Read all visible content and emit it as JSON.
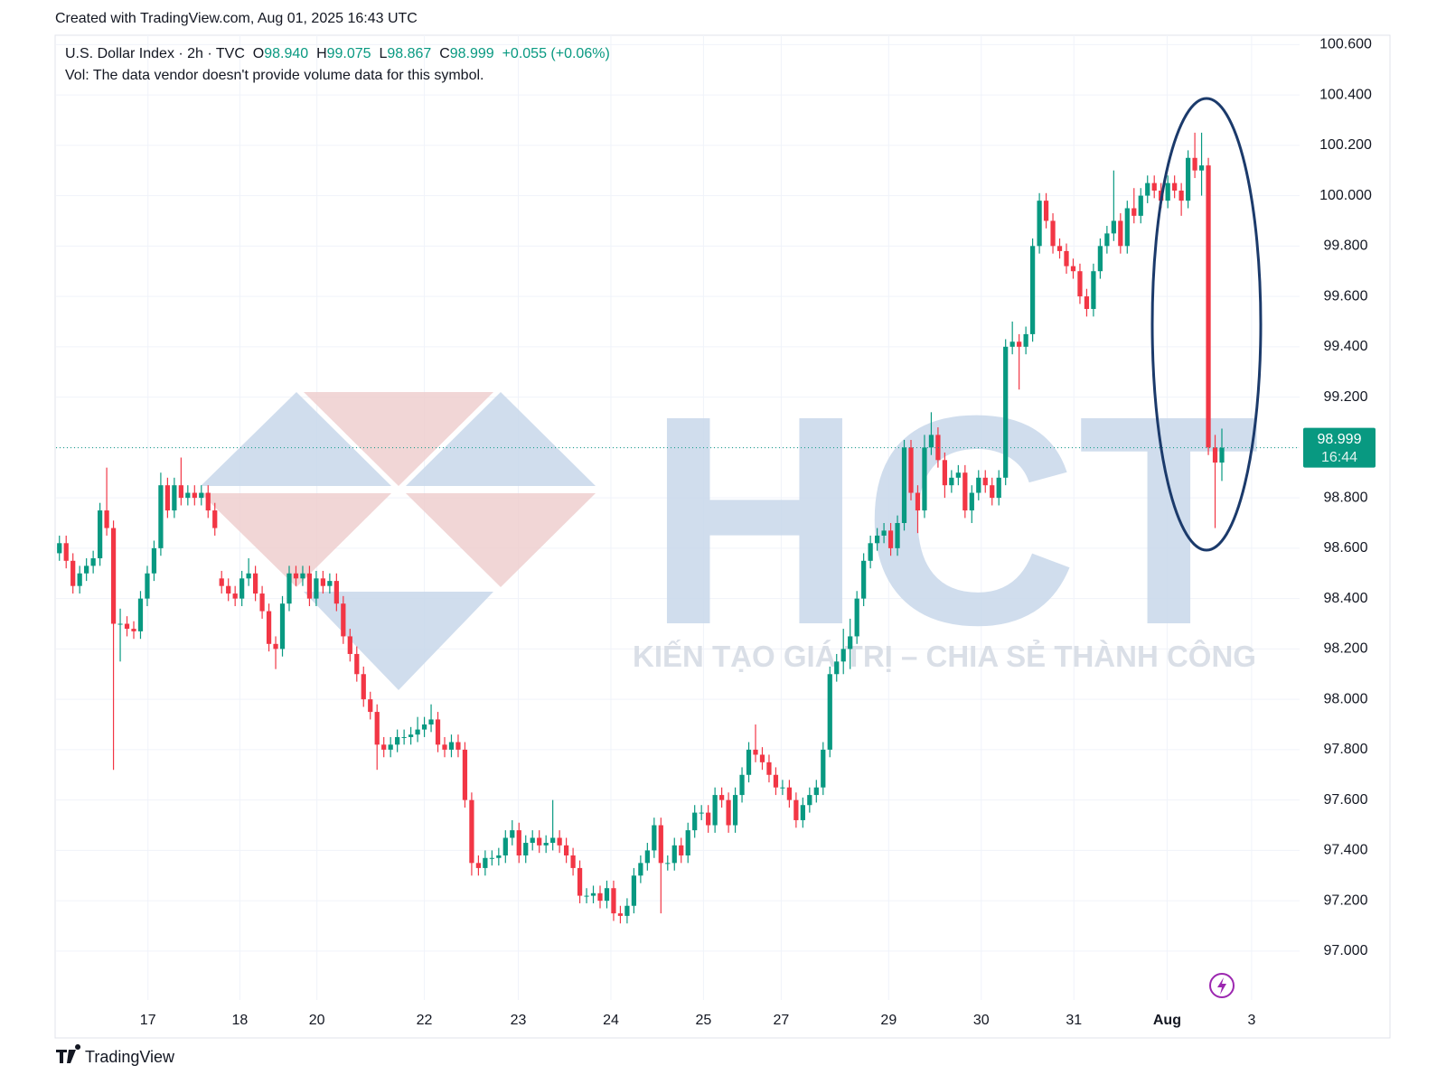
{
  "header": {
    "created": "Created with TradingView.com, Aug 01, 2025 16:43 UTC"
  },
  "footer": {
    "brand": "TradingView"
  },
  "watermark": {
    "logo": "HCT",
    "slogan": "KIẾN TẠO GIÁ TRỊ – CHIA SẺ THÀNH CÔNG"
  },
  "chart_data": {
    "type": "candlestick",
    "legend": {
      "symbol": "U.S. Dollar Index · 2h · TVC",
      "o_label": "O",
      "o": "98.940",
      "h_label": "H",
      "h": "99.075",
      "l_label": "L",
      "l": "98.867",
      "c_label": "C",
      "c": "98.999",
      "change": "+0.055 (+0.06%)",
      "volume_note": "Vol: The data vendor doesn't provide volume data for this symbol."
    },
    "up_color": "#089981",
    "down_color": "#f23645",
    "grid": true,
    "ylim": [
      96.806,
      100.637
    ],
    "yticks": [
      {
        "value": 97.0,
        "label": "97.000"
      },
      {
        "value": 97.2,
        "label": "97.200"
      },
      {
        "value": 97.4,
        "label": "97.400"
      },
      {
        "value": 97.6,
        "label": "97.600"
      },
      {
        "value": 97.8,
        "label": "97.800"
      },
      {
        "value": 98.0,
        "label": "98.000"
      },
      {
        "value": 98.2,
        "label": "98.200"
      },
      {
        "value": 98.4,
        "label": "98.400"
      },
      {
        "value": 98.6,
        "label": "98.600"
      },
      {
        "value": 98.8,
        "label": "98.800"
      },
      {
        "value": 99.0,
        "label": "99.000"
      },
      {
        "value": 99.2,
        "label": "99.200"
      },
      {
        "value": 99.4,
        "label": "99.400"
      },
      {
        "value": 99.6,
        "label": "99.600"
      },
      {
        "value": 99.8,
        "label": "99.800"
      },
      {
        "value": 100.0,
        "label": "100.000"
      },
      {
        "value": 100.2,
        "label": "100.200"
      },
      {
        "value": 100.4,
        "label": "100.400"
      },
      {
        "value": 100.6,
        "label": "100.600"
      }
    ],
    "xlim": [
      -0.5,
      183.5
    ],
    "xticks": [
      {
        "value": 13.1,
        "label": "17"
      },
      {
        "value": 26.7,
        "label": "18"
      },
      {
        "value": 38.1,
        "label": "20"
      },
      {
        "value": 54.0,
        "label": "22"
      },
      {
        "value": 67.9,
        "label": "23"
      },
      {
        "value": 81.6,
        "label": "24"
      },
      {
        "value": 95.3,
        "label": "25"
      },
      {
        "value": 106.8,
        "label": "27"
      },
      {
        "value": 122.7,
        "label": "29"
      },
      {
        "value": 136.4,
        "label": "30"
      },
      {
        "value": 150.1,
        "label": "31"
      },
      {
        "value": 163.9,
        "label": "Aug"
      },
      {
        "value": 176.4,
        "label": "3"
      }
    ],
    "last_price": {
      "value": 98.999,
      "label": "98.999",
      "time": "16:44"
    },
    "candles": [
      [
        98.58,
        98.65,
        98.55,
        98.62
      ],
      [
        98.62,
        98.65,
        98.52,
        98.55
      ],
      [
        98.55,
        98.58,
        98.42,
        98.45
      ],
      [
        98.45,
        98.53,
        98.42,
        98.5
      ],
      [
        98.5,
        98.56,
        98.47,
        98.53
      ],
      [
        98.53,
        98.59,
        98.5,
        98.56
      ],
      [
        98.56,
        98.78,
        98.53,
        98.75
      ],
      [
        98.75,
        98.92,
        98.65,
        98.68
      ],
      [
        98.68,
        98.71,
        97.72,
        98.3
      ],
      [
        98.3,
        98.36,
        98.15,
        98.3
      ],
      [
        98.3,
        98.33,
        98.25,
        98.28
      ],
      [
        98.28,
        98.31,
        98.24,
        98.27
      ],
      [
        98.27,
        98.43,
        98.24,
        98.4
      ],
      [
        98.4,
        98.53,
        98.37,
        98.5
      ],
      [
        98.5,
        98.63,
        98.47,
        98.6
      ],
      [
        98.6,
        98.9,
        98.57,
        98.85
      ],
      [
        98.85,
        98.88,
        98.72,
        98.75
      ],
      [
        98.75,
        98.88,
        98.72,
        98.85
      ],
      [
        98.85,
        98.96,
        98.77,
        98.8
      ],
      [
        98.8,
        98.85,
        98.77,
        98.82
      ],
      [
        98.82,
        98.85,
        98.77,
        98.8
      ],
      [
        98.8,
        98.85,
        98.77,
        98.82
      ],
      [
        98.82,
        98.85,
        98.72,
        98.75
      ],
      [
        98.75,
        98.78,
        98.65,
        98.68
      ],
      [
        98.48,
        98.51,
        98.42,
        98.45
      ],
      [
        98.45,
        98.48,
        98.39,
        98.42
      ],
      [
        98.42,
        98.45,
        98.37,
        98.4
      ],
      [
        98.4,
        98.51,
        98.37,
        98.48
      ],
      [
        98.48,
        98.56,
        98.45,
        98.5
      ],
      [
        98.5,
        98.53,
        98.39,
        98.42
      ],
      [
        98.42,
        98.45,
        98.32,
        98.35
      ],
      [
        98.35,
        98.38,
        98.19,
        98.22
      ],
      [
        98.22,
        98.25,
        98.12,
        98.2
      ],
      [
        98.2,
        98.41,
        98.17,
        98.38
      ],
      [
        98.38,
        98.53,
        98.35,
        98.5
      ],
      [
        98.5,
        98.53,
        98.45,
        98.48
      ],
      [
        98.48,
        98.53,
        98.45,
        98.5
      ],
      [
        98.5,
        98.53,
        98.37,
        98.4
      ],
      [
        98.4,
        98.51,
        98.37,
        98.48
      ],
      [
        98.48,
        98.51,
        98.42,
        98.45
      ],
      [
        98.45,
        98.5,
        98.42,
        98.47
      ],
      [
        98.47,
        98.5,
        98.35,
        98.38
      ],
      [
        98.38,
        98.41,
        98.22,
        98.25
      ],
      [
        98.25,
        98.28,
        98.15,
        98.18
      ],
      [
        98.18,
        98.21,
        98.07,
        98.1
      ],
      [
        98.1,
        98.13,
        97.97,
        98.0
      ],
      [
        98.0,
        98.03,
        97.92,
        97.95
      ],
      [
        97.95,
        97.98,
        97.72,
        97.82
      ],
      [
        97.82,
        97.85,
        97.77,
        97.8
      ],
      [
        97.8,
        97.85,
        97.77,
        97.82
      ],
      [
        97.82,
        97.88,
        97.79,
        97.85
      ],
      [
        97.85,
        97.88,
        97.82,
        97.85
      ],
      [
        97.85,
        97.89,
        97.82,
        97.86
      ],
      [
        97.86,
        97.93,
        97.83,
        97.88
      ],
      [
        97.88,
        97.93,
        97.85,
        97.9
      ],
      [
        97.9,
        97.98,
        97.87,
        97.92
      ],
      [
        97.92,
        97.95,
        97.79,
        97.82
      ],
      [
        97.82,
        97.85,
        97.77,
        97.8
      ],
      [
        97.8,
        97.86,
        97.77,
        97.83
      ],
      [
        97.83,
        97.86,
        97.77,
        97.8
      ],
      [
        97.8,
        97.83,
        97.57,
        97.6
      ],
      [
        97.6,
        97.63,
        97.3,
        97.35
      ],
      [
        97.35,
        97.38,
        97.3,
        97.33
      ],
      [
        97.33,
        97.4,
        97.3,
        97.37
      ],
      [
        97.37,
        97.4,
        97.34,
        97.37
      ],
      [
        97.37,
        97.41,
        97.34,
        97.38
      ],
      [
        97.38,
        97.48,
        97.35,
        97.45
      ],
      [
        97.45,
        97.52,
        97.42,
        97.48
      ],
      [
        97.48,
        97.51,
        97.35,
        97.38
      ],
      [
        97.38,
        97.46,
        97.35,
        97.43
      ],
      [
        97.43,
        97.48,
        97.4,
        97.45
      ],
      [
        97.45,
        97.48,
        97.39,
        97.42
      ],
      [
        97.42,
        97.46,
        97.39,
        97.43
      ],
      [
        97.43,
        97.6,
        97.4,
        97.45
      ],
      [
        97.45,
        97.48,
        97.39,
        97.42
      ],
      [
        97.42,
        97.45,
        97.35,
        97.38
      ],
      [
        97.38,
        97.41,
        97.3,
        97.33
      ],
      [
        97.33,
        97.36,
        97.19,
        97.22
      ],
      [
        97.22,
        97.25,
        97.19,
        97.22
      ],
      [
        97.22,
        97.26,
        97.19,
        97.23
      ],
      [
        97.23,
        97.26,
        97.17,
        97.2
      ],
      [
        97.2,
        97.28,
        97.17,
        97.25
      ],
      [
        97.25,
        97.28,
        97.12,
        97.15
      ],
      [
        97.15,
        97.18,
        97.11,
        97.14
      ],
      [
        97.14,
        97.21,
        97.11,
        97.18
      ],
      [
        97.18,
        97.33,
        97.15,
        97.3
      ],
      [
        97.3,
        97.38,
        97.27,
        97.35
      ],
      [
        97.35,
        97.43,
        97.32,
        97.4
      ],
      [
        97.4,
        97.53,
        97.37,
        97.5
      ],
      [
        97.5,
        97.53,
        97.15,
        97.35
      ],
      [
        97.35,
        97.38,
        97.32,
        97.35
      ],
      [
        97.35,
        97.45,
        97.32,
        97.42
      ],
      [
        97.42,
        97.45,
        97.35,
        97.38
      ],
      [
        97.38,
        97.51,
        97.35,
        97.48
      ],
      [
        97.48,
        97.58,
        97.45,
        97.55
      ],
      [
        97.55,
        97.58,
        97.52,
        97.55
      ],
      [
        97.55,
        97.58,
        97.47,
        97.5
      ],
      [
        97.5,
        97.65,
        97.47,
        97.62
      ],
      [
        97.62,
        97.65,
        97.57,
        97.6
      ],
      [
        97.6,
        97.63,
        97.47,
        97.5
      ],
      [
        97.5,
        97.65,
        97.47,
        97.62
      ],
      [
        97.62,
        97.73,
        97.59,
        97.7
      ],
      [
        97.7,
        97.83,
        97.67,
        97.8
      ],
      [
        97.8,
        97.9,
        97.75,
        97.78
      ],
      [
        97.78,
        97.81,
        97.72,
        97.75
      ],
      [
        97.75,
        97.78,
        97.67,
        97.7
      ],
      [
        97.7,
        97.73,
        97.62,
        97.65
      ],
      [
        97.65,
        97.68,
        97.62,
        97.65
      ],
      [
        97.65,
        97.68,
        97.57,
        97.6
      ],
      [
        97.6,
        97.63,
        97.49,
        97.52
      ],
      [
        97.52,
        97.61,
        97.49,
        97.58
      ],
      [
        97.58,
        97.65,
        97.55,
        97.62
      ],
      [
        97.62,
        97.68,
        97.59,
        97.65
      ],
      [
        97.65,
        97.83,
        97.62,
        97.8
      ],
      [
        97.8,
        98.13,
        97.77,
        98.1
      ],
      [
        98.1,
        98.18,
        98.07,
        98.15
      ],
      [
        98.15,
        98.28,
        98.1,
        98.2
      ],
      [
        98.2,
        98.32,
        98.12,
        98.25
      ],
      [
        98.25,
        98.43,
        98.22,
        98.4
      ],
      [
        98.4,
        98.58,
        98.37,
        98.55
      ],
      [
        98.55,
        98.65,
        98.52,
        98.62
      ],
      [
        98.62,
        98.68,
        98.59,
        98.65
      ],
      [
        98.65,
        98.7,
        98.62,
        98.67
      ],
      [
        98.67,
        98.7,
        98.57,
        98.6
      ],
      [
        98.6,
        98.73,
        98.57,
        98.7
      ],
      [
        98.7,
        99.03,
        98.67,
        99.0
      ],
      [
        99.0,
        99.03,
        98.79,
        98.82
      ],
      [
        98.82,
        98.85,
        98.66,
        98.75
      ],
      [
        98.75,
        99.05,
        98.72,
        99.0
      ],
      [
        99.0,
        99.14,
        98.97,
        99.05
      ],
      [
        99.05,
        99.08,
        98.92,
        98.95
      ],
      [
        98.95,
        98.98,
        98.8,
        98.85
      ],
      [
        98.85,
        98.91,
        98.82,
        98.88
      ],
      [
        98.88,
        98.93,
        98.85,
        98.9
      ],
      [
        98.9,
        98.93,
        98.72,
        98.75
      ],
      [
        98.75,
        98.85,
        98.7,
        98.82
      ],
      [
        98.82,
        98.91,
        98.79,
        98.88
      ],
      [
        98.88,
        98.91,
        98.82,
        98.85
      ],
      [
        98.85,
        98.88,
        98.77,
        98.8
      ],
      [
        98.8,
        98.91,
        98.77,
        98.88
      ],
      [
        98.88,
        99.43,
        98.85,
        99.4
      ],
      [
        99.4,
        99.5,
        99.37,
        99.42
      ],
      [
        99.42,
        99.45,
        99.23,
        99.4
      ],
      [
        99.4,
        99.48,
        99.37,
        99.45
      ],
      [
        99.45,
        99.83,
        99.42,
        99.8
      ],
      [
        99.8,
        100.01,
        99.77,
        99.98
      ],
      [
        99.98,
        100.01,
        99.87,
        99.9
      ],
      [
        99.9,
        99.93,
        99.77,
        99.8
      ],
      [
        99.8,
        99.83,
        99.75,
        99.78
      ],
      [
        99.78,
        99.81,
        99.69,
        99.72
      ],
      [
        99.72,
        99.75,
        99.67,
        99.7
      ],
      [
        99.7,
        99.73,
        99.57,
        99.6
      ],
      [
        99.6,
        99.63,
        99.52,
        99.55
      ],
      [
        99.55,
        99.73,
        99.52,
        99.7
      ],
      [
        99.7,
        99.83,
        99.67,
        99.8
      ],
      [
        99.8,
        99.88,
        99.77,
        99.85
      ],
      [
        99.85,
        100.1,
        99.82,
        99.9
      ],
      [
        99.9,
        99.93,
        99.77,
        99.8
      ],
      [
        99.8,
        99.98,
        99.77,
        99.95
      ],
      [
        99.95,
        100.03,
        99.89,
        99.92
      ],
      [
        99.92,
        100.03,
        99.89,
        100.0
      ],
      [
        100.0,
        100.08,
        99.97,
        100.05
      ],
      [
        100.05,
        100.08,
        99.99,
        100.02
      ],
      [
        100.02,
        100.05,
        99.95,
        99.98
      ],
      [
        99.98,
        100.08,
        99.95,
        100.05
      ],
      [
        100.05,
        100.08,
        99.99,
        100.02
      ],
      [
        100.02,
        100.05,
        99.92,
        99.98
      ],
      [
        99.98,
        100.18,
        99.95,
        100.15
      ],
      [
        100.15,
        100.25,
        100.07,
        100.1
      ],
      [
        100.1,
        100.25,
        100.0,
        100.12
      ],
      [
        100.12,
        100.15,
        98.97,
        99.0
      ],
      [
        99.0,
        99.05,
        98.68,
        98.94
      ],
      [
        98.94,
        99.075,
        98.867,
        98.999
      ]
    ]
  }
}
